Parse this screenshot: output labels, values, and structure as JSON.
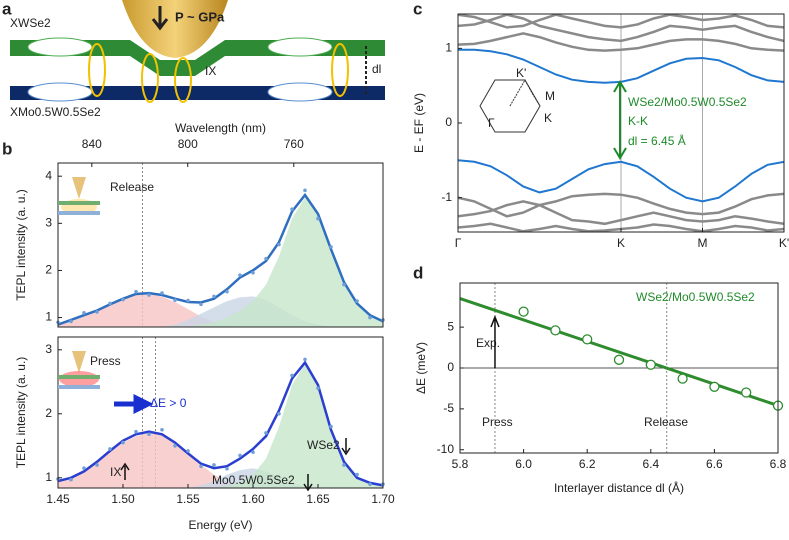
{
  "diagram": {
    "label": "a",
    "top_layer": "XWSe2",
    "bottom_layer": "XMo0.5W0.5Se2",
    "pressure": "P ~ GPa",
    "interlayer": "IX",
    "distance": "dl"
  },
  "chart_data": [
    {
      "type": "line",
      "label": "b",
      "y_label": "TEPL intensity (a. u.)",
      "x2_label": "Wavelength (nm)",
      "x2ticks": [
        840,
        800,
        760
      ],
      "xlim": [
        1.45,
        1.7
      ],
      "ylim": [
        0.8,
        4.28
      ],
      "yticks": [
        1,
        2,
        3,
        4
      ],
      "vlines": [
        1.515
      ],
      "annotations": [
        "Release"
      ],
      "x": [
        1.45,
        1.46,
        1.47,
        1.48,
        1.49,
        1.5,
        1.51,
        1.52,
        1.53,
        1.54,
        1.55,
        1.56,
        1.57,
        1.58,
        1.59,
        1.6,
        1.61,
        1.62,
        1.63,
        1.64,
        1.65,
        1.66,
        1.67,
        1.68,
        1.69,
        1.7
      ],
      "series": [
        {
          "style": "area",
          "color": "#f6c4c4",
          "values": [
            0.85,
            0.92,
            1.02,
            1.14,
            1.28,
            1.4,
            1.49,
            1.5,
            1.44,
            1.33,
            1.18,
            1.02,
            0.9,
            0.84,
            0.8,
            0.8,
            0.8,
            0.8,
            0.8,
            0.8,
            0.8,
            0.8,
            0.8,
            0.8,
            0.8,
            0.8
          ]
        },
        {
          "style": "area",
          "color": "#c9d6e6",
          "values": [
            0.8,
            0.8,
            0.8,
            0.8,
            0.8,
            0.8,
            0.8,
            0.8,
            0.8,
            0.85,
            0.95,
            1.08,
            1.22,
            1.35,
            1.43,
            1.45,
            1.38,
            1.22,
            1.05,
            0.92,
            0.85,
            0.8,
            0.8,
            0.8,
            0.8,
            0.8
          ]
        },
        {
          "style": "area",
          "color": "#c6e6cb",
          "values": [
            0.8,
            0.8,
            0.8,
            0.8,
            0.8,
            0.8,
            0.8,
            0.8,
            0.8,
            0.8,
            0.8,
            0.85,
            0.9,
            1.0,
            1.15,
            1.35,
            1.7,
            2.3,
            3.1,
            3.55,
            3.2,
            2.45,
            1.75,
            1.3,
            1.05,
            0.92
          ]
        },
        {
          "style": "markers",
          "color": "#6f9fd8",
          "values": [
            0.9,
            0.92,
            1.1,
            1.12,
            1.3,
            1.38,
            1.55,
            1.48,
            1.52,
            1.37,
            1.36,
            1.28,
            1.45,
            1.55,
            1.9,
            1.95,
            2.25,
            2.55,
            3.3,
            3.7,
            3.1,
            2.5,
            1.7,
            1.35,
            1.0,
            0.95
          ]
        },
        {
          "style": "line",
          "color": "#2f6fc0",
          "values": [
            0.85,
            0.95,
            1.05,
            1.15,
            1.28,
            1.4,
            1.5,
            1.52,
            1.48,
            1.4,
            1.33,
            1.32,
            1.4,
            1.6,
            1.85,
            2.0,
            2.2,
            2.6,
            3.25,
            3.6,
            3.2,
            2.45,
            1.75,
            1.3,
            1.05,
            0.92
          ]
        }
      ]
    },
    {
      "type": "line",
      "y_label": "TEPL intensity (a. u.)",
      "x_label": "Energy (eV)",
      "xlim": [
        1.45,
        1.7
      ],
      "ylim": [
        0.84,
        3.2
      ],
      "yticks": [
        1,
        2,
        3
      ],
      "xticks": [
        1.45,
        {
          "value": 1.5,
          "label": "1.50"
        },
        1.55,
        {
          "value": 1.6,
          "label": "1.60"
        },
        1.65,
        {
          "value": 1.7,
          "label": "1.70"
        }
      ],
      "vlines": [
        1.515,
        1.525
      ],
      "annotations": [
        "Press",
        "ΔE > 0",
        "IX",
        "WSe2",
        "Mo0.5W0.5Se2"
      ],
      "x": [
        1.45,
        1.46,
        1.47,
        1.48,
        1.49,
        1.5,
        1.51,
        1.52,
        1.53,
        1.54,
        1.55,
        1.56,
        1.57,
        1.58,
        1.59,
        1.6,
        1.61,
        1.62,
        1.63,
        1.64,
        1.65,
        1.66,
        1.67,
        1.68,
        1.69,
        1.7
      ],
      "series": [
        {
          "style": "area",
          "color": "#f6c4c4",
          "values": [
            0.95,
            1.0,
            1.1,
            1.24,
            1.4,
            1.55,
            1.65,
            1.7,
            1.68,
            1.55,
            1.38,
            1.2,
            1.05,
            0.93,
            0.86,
            0.84,
            0.84,
            0.84,
            0.84,
            0.84,
            0.84,
            0.84,
            0.84,
            0.84,
            0.84,
            0.84
          ]
        },
        {
          "style": "area",
          "color": "#c9d6e6",
          "values": [
            0.84,
            0.84,
            0.84,
            0.84,
            0.84,
            0.84,
            0.84,
            0.84,
            0.84,
            0.84,
            0.84,
            0.88,
            0.95,
            1.05,
            1.12,
            1.15,
            1.1,
            1.0,
            0.92,
            0.87,
            0.84,
            0.84,
            0.84,
            0.84,
            0.84,
            0.84
          ]
        },
        {
          "style": "area",
          "color": "#c6e6cb",
          "values": [
            0.84,
            0.84,
            0.84,
            0.84,
            0.84,
            0.84,
            0.84,
            0.84,
            0.84,
            0.84,
            0.84,
            0.84,
            0.84,
            0.87,
            0.93,
            1.05,
            1.3,
            1.8,
            2.45,
            2.78,
            2.45,
            1.75,
            1.25,
            1.0,
            0.92,
            0.88
          ]
        },
        {
          "style": "markers",
          "color": "#6f9fd8",
          "values": [
            0.98,
            0.97,
            1.15,
            1.2,
            1.45,
            1.55,
            1.72,
            1.68,
            1.75,
            1.5,
            1.42,
            1.18,
            1.2,
            1.14,
            1.35,
            1.4,
            1.7,
            2.0,
            2.6,
            2.85,
            2.4,
            1.8,
            1.2,
            1.05,
            0.9,
            0.9
          ]
        },
        {
          "style": "line",
          "color": "#2a3fd0",
          "values": [
            0.95,
            1.0,
            1.1,
            1.25,
            1.42,
            1.58,
            1.68,
            1.72,
            1.68,
            1.55,
            1.38,
            1.22,
            1.15,
            1.18,
            1.3,
            1.45,
            1.65,
            2.05,
            2.55,
            2.8,
            2.45,
            1.75,
            1.25,
            1.0,
            0.92,
            0.88
          ]
        }
      ]
    },
    {
      "type": "line",
      "label": "c",
      "y_label": "E - EF (eV)",
      "xlim": [
        0,
        2
      ],
      "ylim": [
        -1.46,
        1.46
      ],
      "yticks": [
        -1,
        0,
        1
      ],
      "xticks": [
        {
          "value": 0,
          "label": "Γ"
        },
        {
          "value": 1,
          "label": "K"
        },
        {
          "value": 1.5,
          "label": "M"
        },
        {
          "value": 2,
          "label": "K'"
        }
      ],
      "vlines": [
        1,
        1.5
      ],
      "inset_labels": [
        "K'",
        "M",
        "Γ",
        "K"
      ],
      "annotations": [
        {
          "text": "WSe2/Mo0.5W0.5Se2",
          "color": "#1f8a2a"
        },
        {
          "text": "K-K",
          "color": "#1f8a2a"
        },
        {
          "text": "dl = 6.45 Å",
          "color": "#1f8a2a"
        }
      ],
      "x": [
        0,
        0.1,
        0.2,
        0.3,
        0.4,
        0.5,
        0.6,
        0.7,
        0.8,
        0.9,
        1,
        1.1,
        1.2,
        1.3,
        1.4,
        1.5,
        1.6,
        1.7,
        1.8,
        1.9,
        2
      ],
      "series": [
        {
          "style": "line",
          "color": "#8a8a8a",
          "values": [
            1.05,
            1.06,
            1.1,
            1.15,
            1.2,
            1.15,
            1.08,
            1.02,
            0.98,
            0.97,
            0.98,
            1.0,
            1.05,
            1.1,
            1.12,
            1.12,
            1.1,
            1.06,
            1.0,
            0.98,
            0.97
          ]
        },
        {
          "style": "line",
          "color": "#8a8a8a",
          "values": [
            1.3,
            1.32,
            1.38,
            1.45,
            1.4,
            1.3,
            1.25,
            1.2,
            1.15,
            1.12,
            1.1,
            1.15,
            1.22,
            1.3,
            1.28,
            1.25,
            1.28,
            1.3,
            1.22,
            1.15,
            1.1
          ]
        },
        {
          "style": "line",
          "color": "#8a8a8a",
          "values": [
            1.45,
            1.42,
            1.35,
            1.28,
            1.3,
            1.38,
            1.45,
            1.4,
            1.35,
            1.3,
            1.28,
            1.32,
            1.4,
            1.45,
            1.42,
            1.38,
            1.4,
            1.44,
            1.38,
            1.3,
            1.28
          ]
        },
        {
          "style": "line",
          "color": "#8a8a8a",
          "values": [
            -1.0,
            -1.05,
            -1.15,
            -1.25,
            -1.2,
            -1.1,
            -1.05,
            -0.98,
            -0.96,
            -0.95,
            -0.96,
            -1.0,
            -1.08,
            -1.15,
            -1.2,
            -1.22,
            -1.2,
            -1.12,
            -1.02,
            -0.97,
            -0.95
          ]
        },
        {
          "style": "line",
          "color": "#8a8a8a",
          "values": [
            -1.25,
            -1.22,
            -1.18,
            -1.1,
            -1.05,
            -1.1,
            -1.2,
            -1.3,
            -1.32,
            -1.35,
            -1.3,
            -1.25,
            -1.2,
            -1.25,
            -1.3,
            -1.32,
            -1.3,
            -1.25,
            -1.28,
            -1.32,
            -1.35
          ]
        },
        {
          "style": "line",
          "color": "#8a8a8a",
          "values": [
            -1.4,
            -1.38,
            -1.35,
            -1.4,
            -1.45,
            -1.42,
            -1.38,
            -1.42,
            -1.45,
            -1.44,
            -1.42,
            -1.4,
            -1.36,
            -1.38,
            -1.42,
            -1.45,
            -1.42,
            -1.38,
            -1.4,
            -1.44,
            -1.42
          ]
        },
        {
          "style": "line",
          "color": "#1f77d0",
          "width": 2,
          "values": [
            0.98,
            0.98,
            0.96,
            0.92,
            0.85,
            0.75,
            0.65,
            0.58,
            0.55,
            0.54,
            0.55,
            0.6,
            0.7,
            0.8,
            0.86,
            0.87,
            0.84,
            0.75,
            0.64,
            0.57,
            0.55
          ]
        },
        {
          "style": "line",
          "color": "#1f77d0",
          "width": 2,
          "values": [
            -0.5,
            -0.52,
            -0.58,
            -0.7,
            -0.85,
            -0.93,
            -0.88,
            -0.75,
            -0.62,
            -0.55,
            -0.52,
            -0.58,
            -0.72,
            -0.88,
            -1.0,
            -1.05,
            -1.0,
            -0.85,
            -0.68,
            -0.56,
            -0.52
          ]
        }
      ]
    },
    {
      "type": "scatter",
      "label": "d",
      "y_label": "ΔE (meV)",
      "x_label": "Interlayer distance dl (Å)",
      "xlim": [
        5.8,
        6.8
      ],
      "ylim": [
        -10.4,
        10.4
      ],
      "yticks": [
        -10,
        -5,
        0,
        5
      ],
      "xticks": [
        5.8,
        {
          "value": 6,
          "label": "6.0"
        },
        6.2,
        6.4,
        6.6,
        6.8
      ],
      "vlines": [
        5.91,
        6.45
      ],
      "hlines": [
        0
      ],
      "annotations": [
        {
          "text": "WSe2/Mo0.5W0.5Se2",
          "color": "#1f8a2a"
        },
        "Exp.",
        "Press",
        "Release"
      ],
      "series": [
        {
          "style": "line",
          "color": "#2e8b2e",
          "width": 3,
          "x": [
            5.8,
            6.8
          ],
          "values": [
            8.5,
            -4.6
          ]
        },
        {
          "style": "open-markers",
          "color": "#2e8b2e",
          "x": [
            6.0,
            6.1,
            6.2,
            6.3,
            6.4,
            6.5,
            6.6,
            6.7,
            6.8
          ],
          "values": [
            6.9,
            4.6,
            3.5,
            1.0,
            0.4,
            -1.3,
            -2.3,
            -3.0,
            -4.6
          ]
        }
      ]
    }
  ]
}
